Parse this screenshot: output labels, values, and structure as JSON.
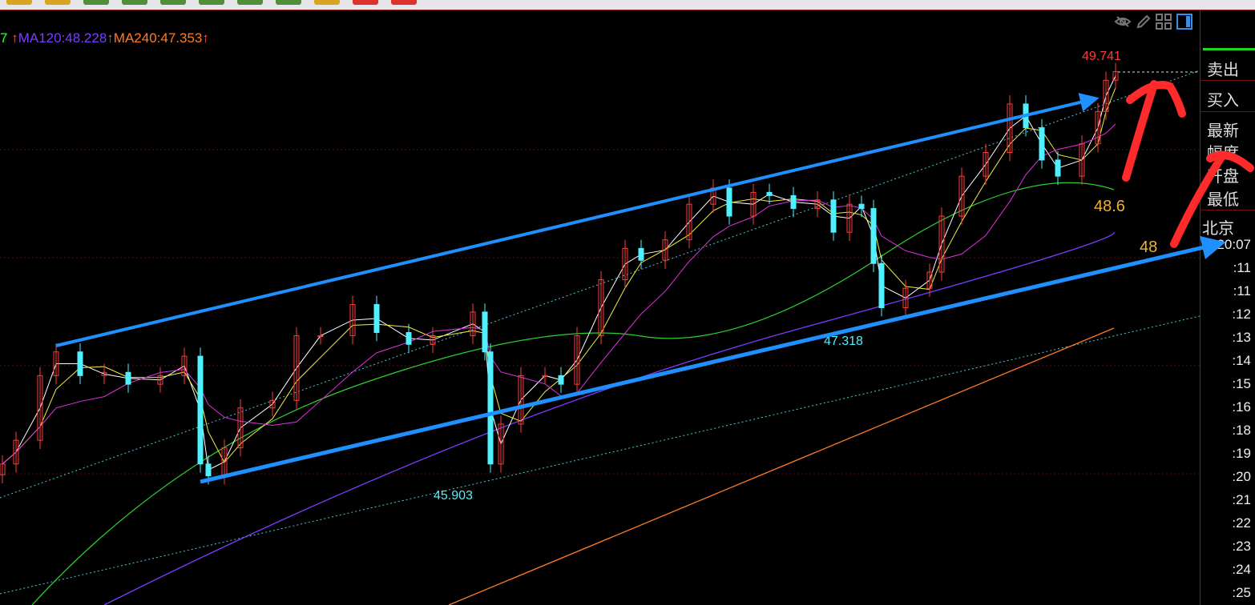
{
  "toolbar": {
    "buttons": [
      "#d9a520",
      "#d9a520",
      "#4f8f3a",
      "#4f8f3a",
      "#4f8f3a",
      "#4f8f3a",
      "#4f8f3a",
      "#4f8f3a",
      "#d9a520",
      "#e03030",
      "#e03030"
    ]
  },
  "legend": {
    "prefix": "7",
    "ma120": "MA120:48.228",
    "ma240": "MA240:47.353",
    "arrow": "↑"
  },
  "toolbar_icons": [
    "eye-hidden-icon",
    "pencil-icon",
    "grid-icon",
    "panel-toggle-icon"
  ],
  "right_panel": {
    "sell": "卖出",
    "buy": "买入",
    "latest": "最新",
    "range": "幅度",
    "open": "开盘",
    "low": "最低",
    "beijing": "北京",
    "times": [
      "20:07",
      ":11",
      ":11",
      ":12",
      ":13",
      ":14",
      ":15",
      ":16",
      ":18",
      ":19",
      ":20",
      ":21",
      ":22",
      ":23",
      ":24",
      ":25"
    ]
  },
  "annotations": {
    "high_label": "49.741",
    "low_label_1": "45.903",
    "low_label_2": "47.318",
    "level_1": "48.6",
    "level_2": "48"
  },
  "chart_data": {
    "type": "candlestick",
    "closes": [
      46.09,
      46.31,
      46.91,
      47.13,
      46.91,
      46.94,
      46.83,
      46.91,
      47.09,
      46.09,
      45.98,
      46.24,
      46.61,
      46.68,
      47.28,
      47.28,
      47.57,
      47.31,
      47.2,
      47.28,
      47.5,
      47.13,
      46.09,
      46.46,
      46.91,
      46.91,
      46.83,
      47.28,
      47.8,
      48.09,
      47.98,
      48.17,
      48.5,
      48.65,
      48.39,
      48.61,
      48.58,
      48.46,
      48.54,
      48.24,
      48.5,
      48.46,
      47.95,
      47.54,
      47.72,
      47.87,
      48.39,
      48.76,
      48.98,
      49.43,
      49.21,
      48.91,
      48.76,
      49.06,
      49.36,
      49.65,
      49.73
    ],
    "high": 49.741,
    "lows": [
      45.903,
      47.318
    ],
    "moving_averages": [
      {
        "name": "MA120",
        "value": 48.228,
        "color": "#7b3cff"
      },
      {
        "name": "MA240",
        "value": 47.353,
        "color": "#ff7a22"
      }
    ],
    "colors": {
      "up": "#ff3b3b",
      "down": "#4ff0ff",
      "channel": "#1e90ff",
      "annotation": "#ff2a2a"
    }
  }
}
